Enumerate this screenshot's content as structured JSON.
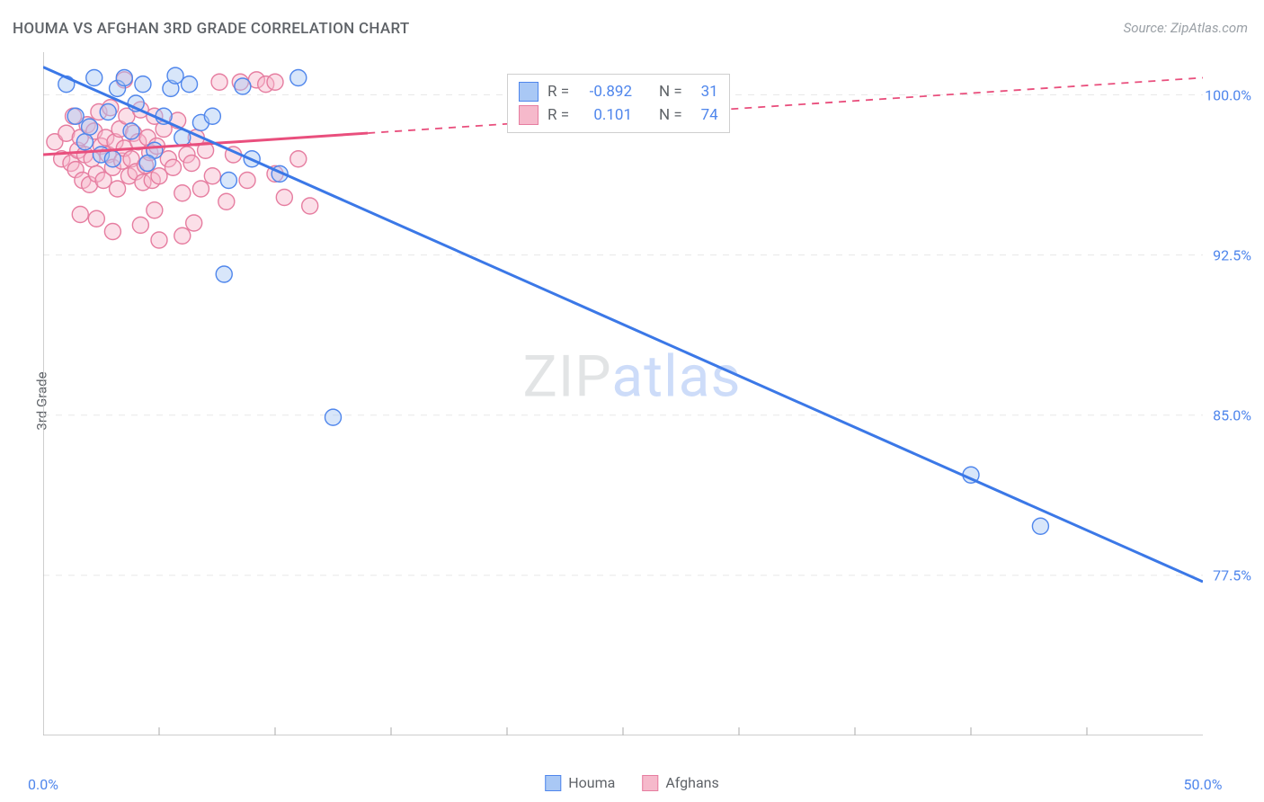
{
  "title": "HOUMA VS AFGHAN 3RD GRADE CORRELATION CHART",
  "source": "Source: ZipAtlas.com",
  "ylabel": "3rd Grade",
  "watermark_zip": "ZIP",
  "watermark_atlas": "atlas",
  "chart": {
    "type": "scatter",
    "xlim": [
      0,
      50
    ],
    "ylim": [
      70,
      102
    ],
    "xtick_minor_step": 5,
    "ytick_positions": [
      77.5,
      85.0,
      92.5,
      100.0
    ],
    "ytick_labels": [
      "77.5%",
      "85.0%",
      "92.5%",
      "100.0%"
    ],
    "xtick_labels": {
      "left": "0.0%",
      "right": "50.0%"
    },
    "grid_color": "#e8e8e8",
    "axis_color": "#bdbdbd",
    "background_color": "#ffffff",
    "marker_radius": 9,
    "marker_opacity": 0.45,
    "line_width": 3
  },
  "series": {
    "houma": {
      "label": "Houma",
      "color_fill": "#a9c8f5",
      "color_stroke": "#4f86ec",
      "line_color": "#3b78e7",
      "R": "-0.892",
      "N": "31",
      "trend": {
        "x1": 0,
        "y1": 101.3,
        "x2": 50,
        "y2": 77.2,
        "solid_until_x": 50
      },
      "points": [
        [
          1.0,
          100.5
        ],
        [
          1.4,
          99.0
        ],
        [
          1.8,
          97.8
        ],
        [
          2.0,
          98.5
        ],
        [
          2.2,
          100.8
        ],
        [
          2.5,
          97.2
        ],
        [
          2.8,
          99.2
        ],
        [
          3.0,
          97.0
        ],
        [
          3.2,
          100.3
        ],
        [
          3.5,
          100.8
        ],
        [
          3.8,
          98.3
        ],
        [
          4.0,
          99.6
        ],
        [
          4.3,
          100.5
        ],
        [
          4.8,
          97.4
        ],
        [
          5.2,
          99.0
        ],
        [
          5.5,
          100.3
        ],
        [
          5.7,
          100.9
        ],
        [
          6.0,
          98.0
        ],
        [
          6.3,
          100.5
        ],
        [
          6.8,
          98.7
        ],
        [
          7.3,
          99.0
        ],
        [
          8.0,
          96.0
        ],
        [
          8.6,
          100.4
        ],
        [
          9.0,
          97.0
        ],
        [
          10.2,
          96.3
        ],
        [
          11.0,
          100.8
        ],
        [
          7.8,
          91.6
        ],
        [
          12.5,
          84.9
        ],
        [
          40.0,
          82.2
        ],
        [
          43.0,
          79.8
        ],
        [
          4.5,
          96.8
        ]
      ]
    },
    "afghans": {
      "label": "Afghans",
      "color_fill": "#f6b9cb",
      "color_stroke": "#e67da0",
      "line_color": "#e94f7d",
      "R": "0.101",
      "N": "74",
      "trend": {
        "x1": 0,
        "y1": 97.2,
        "x2": 50,
        "y2": 100.8,
        "solid_until_x": 14
      },
      "points": [
        [
          0.5,
          97.8
        ],
        [
          0.8,
          97.0
        ],
        [
          1.0,
          98.2
        ],
        [
          1.2,
          96.8
        ],
        [
          1.3,
          99.0
        ],
        [
          1.4,
          96.5
        ],
        [
          1.5,
          97.4
        ],
        [
          1.6,
          98.0
        ],
        [
          1.7,
          96.0
        ],
        [
          1.8,
          97.2
        ],
        [
          1.9,
          98.6
        ],
        [
          2.0,
          95.8
        ],
        [
          2.1,
          97.0
        ],
        [
          2.2,
          98.3
        ],
        [
          2.3,
          96.3
        ],
        [
          2.4,
          99.2
        ],
        [
          2.5,
          97.6
        ],
        [
          2.6,
          96.0
        ],
        [
          2.7,
          98.0
        ],
        [
          2.8,
          97.2
        ],
        [
          2.9,
          99.4
        ],
        [
          3.0,
          96.6
        ],
        [
          3.1,
          97.8
        ],
        [
          3.2,
          95.6
        ],
        [
          3.3,
          98.4
        ],
        [
          3.4,
          96.9
        ],
        [
          3.5,
          97.5
        ],
        [
          3.6,
          99.0
        ],
        [
          3.7,
          96.2
        ],
        [
          3.8,
          97.0
        ],
        [
          3.9,
          98.2
        ],
        [
          4.0,
          96.4
        ],
        [
          4.1,
          97.8
        ],
        [
          4.2,
          99.3
        ],
        [
          4.3,
          95.9
        ],
        [
          4.4,
          96.7
        ],
        [
          4.5,
          98.0
        ],
        [
          4.6,
          97.3
        ],
        [
          4.7,
          96.0
        ],
        [
          4.8,
          99.0
        ],
        [
          4.9,
          97.6
        ],
        [
          5.0,
          96.2
        ],
        [
          5.2,
          98.4
        ],
        [
          5.4,
          97.0
        ],
        [
          5.6,
          96.6
        ],
        [
          5.8,
          98.8
        ],
        [
          6.0,
          95.4
        ],
        [
          6.2,
          97.2
        ],
        [
          6.4,
          96.8
        ],
        [
          6.6,
          98.0
        ],
        [
          6.8,
          95.6
        ],
        [
          7.0,
          97.4
        ],
        [
          7.3,
          96.2
        ],
        [
          7.6,
          100.6
        ],
        [
          7.9,
          95.0
        ],
        [
          8.2,
          97.2
        ],
        [
          8.5,
          100.6
        ],
        [
          8.8,
          96.0
        ],
        [
          9.2,
          100.7
        ],
        [
          9.6,
          100.5
        ],
        [
          10.0,
          96.3
        ],
        [
          10.0,
          100.6
        ],
        [
          10.4,
          95.2
        ],
        [
          11.0,
          97.0
        ],
        [
          11.5,
          94.8
        ],
        [
          3.0,
          93.6
        ],
        [
          4.2,
          93.9
        ],
        [
          5.0,
          93.2
        ],
        [
          6.5,
          94.0
        ],
        [
          1.6,
          94.4
        ],
        [
          2.3,
          94.2
        ],
        [
          4.8,
          94.6
        ],
        [
          3.5,
          100.7
        ],
        [
          6.0,
          93.4
        ]
      ]
    }
  },
  "stats_labels": {
    "R": "R =",
    "N": "N ="
  }
}
